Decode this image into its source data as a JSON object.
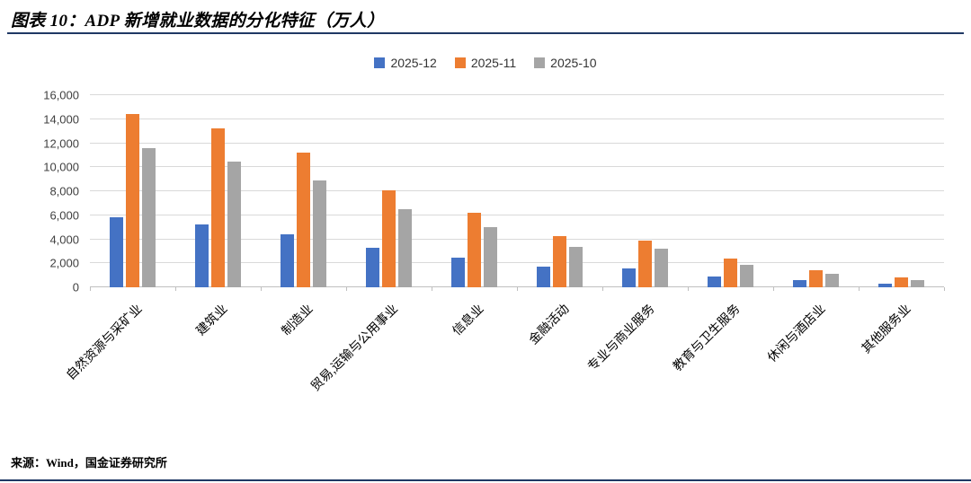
{
  "header": {
    "title": "图表 10：ADP 新增就业数据的分化特征（万人）",
    "rule_color": "#1F3864"
  },
  "footer": {
    "source": "来源：Wind，国金证券研究所"
  },
  "chart_data": {
    "type": "bar",
    "title": "ADP 新增就业数据的分化特征（万人）",
    "categories": [
      "自然资源与采矿业",
      "建筑业",
      "制造业",
      "贸易,运输与公用事业",
      "信息业",
      "金融活动",
      "专业与商业服务",
      "教育与卫生服务",
      "休闲与酒店业",
      "其他服务业"
    ],
    "series": [
      {
        "name": "2025-12",
        "color": "#4472C4",
        "values": [
          5800,
          5200,
          4400,
          3300,
          2500,
          1700,
          1600,
          900,
          600,
          300
        ]
      },
      {
        "name": "2025-11",
        "color": "#ED7D31",
        "values": [
          14400,
          13200,
          11200,
          8100,
          6200,
          4300,
          3900,
          2400,
          1400,
          800
        ]
      },
      {
        "name": "2025-10",
        "color": "#A5A5A5",
        "values": [
          11600,
          10500,
          8900,
          6500,
          5000,
          3400,
          3200,
          1900,
          1100,
          600
        ]
      }
    ],
    "xlabel": "",
    "ylabel": "",
    "ylim": [
      0,
      16000
    ],
    "ytick_step": 2000,
    "grid": true,
    "legend_position": "top"
  }
}
